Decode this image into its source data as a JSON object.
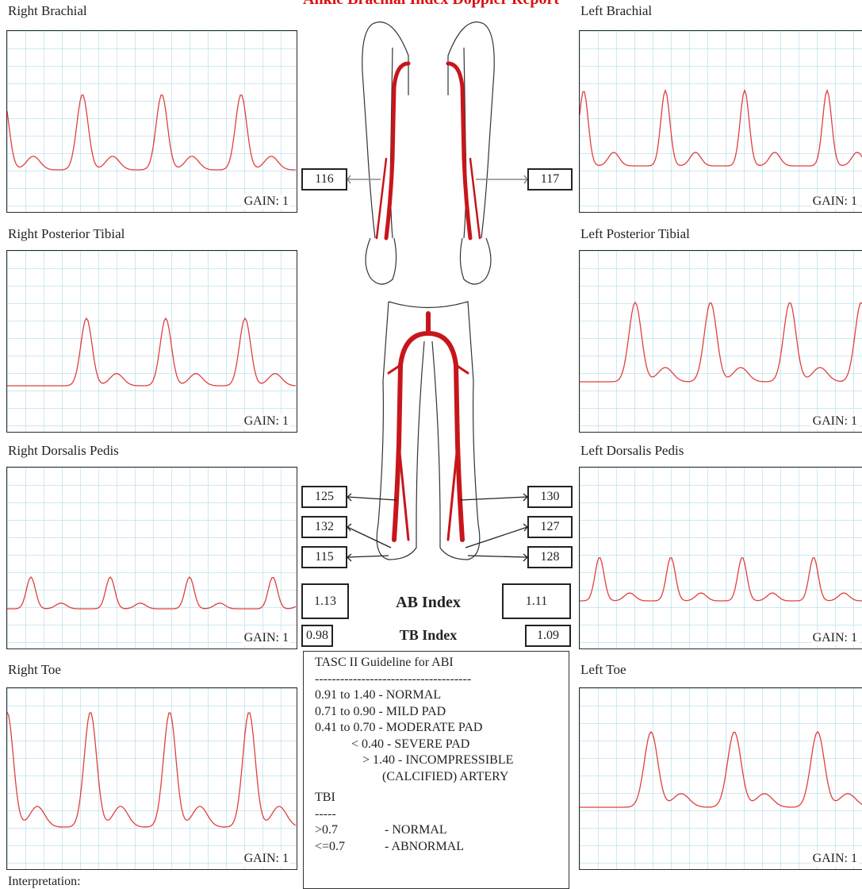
{
  "header": {
    "title": "Ankle Brachial Index Doppler Report"
  },
  "panels": {
    "right": [
      {
        "label": "Right Brachial",
        "gain": "GAIN: 1"
      },
      {
        "label": "Right Posterior Tibial",
        "gain": "GAIN: 1"
      },
      {
        "label": "Right Dorsalis Pedis",
        "gain": "GAIN: 1"
      },
      {
        "label": "Right Toe",
        "gain": "GAIN: 1"
      }
    ],
    "left": [
      {
        "label": "Left Brachial",
        "gain": "GAIN: 1"
      },
      {
        "label": "Left Posterior Tibial",
        "gain": "GAIN: 1"
      },
      {
        "label": "Left Dorsalis Pedis",
        "gain": "GAIN: 1"
      },
      {
        "label": "Left Toe",
        "gain": "GAIN: 1"
      }
    ]
  },
  "pressures": {
    "right_arm": "116",
    "left_arm": "117",
    "right_ankle": [
      "125",
      "132",
      "115"
    ],
    "left_ankle": [
      "130",
      "127",
      "128"
    ]
  },
  "indices": {
    "ab_label": "AB Index",
    "ab_right": "1.13",
    "ab_left": "1.11",
    "tb_label": "TB Index",
    "tb_right": "0.98",
    "tb_left": "1.09"
  },
  "guideline": {
    "abi_lines": [
      "TASC II Guideline for ABI",
      "-------------------------------------",
      "0.91 to 1.40 - NORMAL",
      "0.71 to 0.90 - MILD PAD",
      "0.41 to 0.70 - MODERATE PAD",
      "< 0.40 - SEVERE PAD",
      "> 1.40 - INCOMPRESSIBLE",
      "(CALCIFIED) ARTERY"
    ],
    "tbi_title": "TBI",
    "tbi_rule": "-----",
    "tbi_rows": [
      [
        ">0.7",
        "- NORMAL"
      ],
      [
        "<=0.7",
        "- ABNORMAL"
      ]
    ]
  },
  "interpretation": "Interpretation:"
}
